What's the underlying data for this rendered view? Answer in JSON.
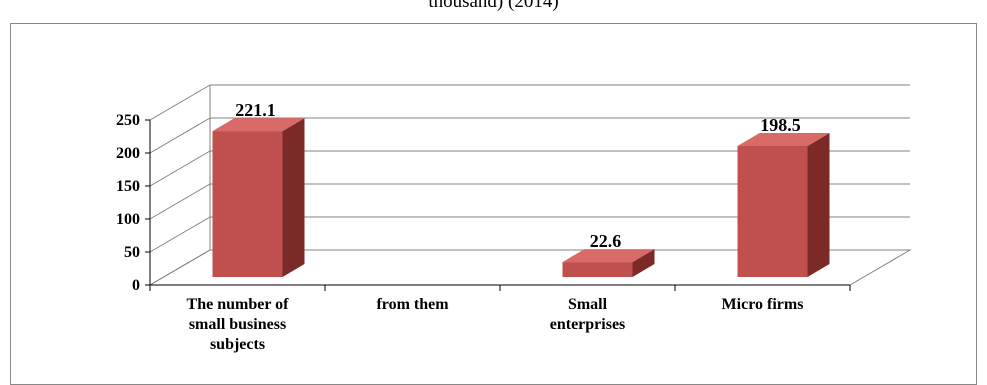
{
  "chart_data": {
    "type": "bar",
    "title": "thousand) (2014)",
    "categories": [
      [
        "The number of",
        "small business",
        "subjects"
      ],
      [
        "from them"
      ],
      [
        "Small",
        "enterprises"
      ],
      [
        "Micro firms"
      ]
    ],
    "values": [
      221.1,
      null,
      22.6,
      198.5
    ],
    "data_labels": [
      "221.1",
      "",
      "22.6",
      "198.5"
    ],
    "ylim": [
      0,
      250
    ],
    "yticks": [
      "0",
      "50",
      "100",
      "150",
      "200",
      "250"
    ],
    "colors": {
      "front": "#c0504d",
      "side": "#7b2a27",
      "top": "#d86b67",
      "grid": "#808080"
    },
    "grid": true,
    "style": "3d"
  }
}
